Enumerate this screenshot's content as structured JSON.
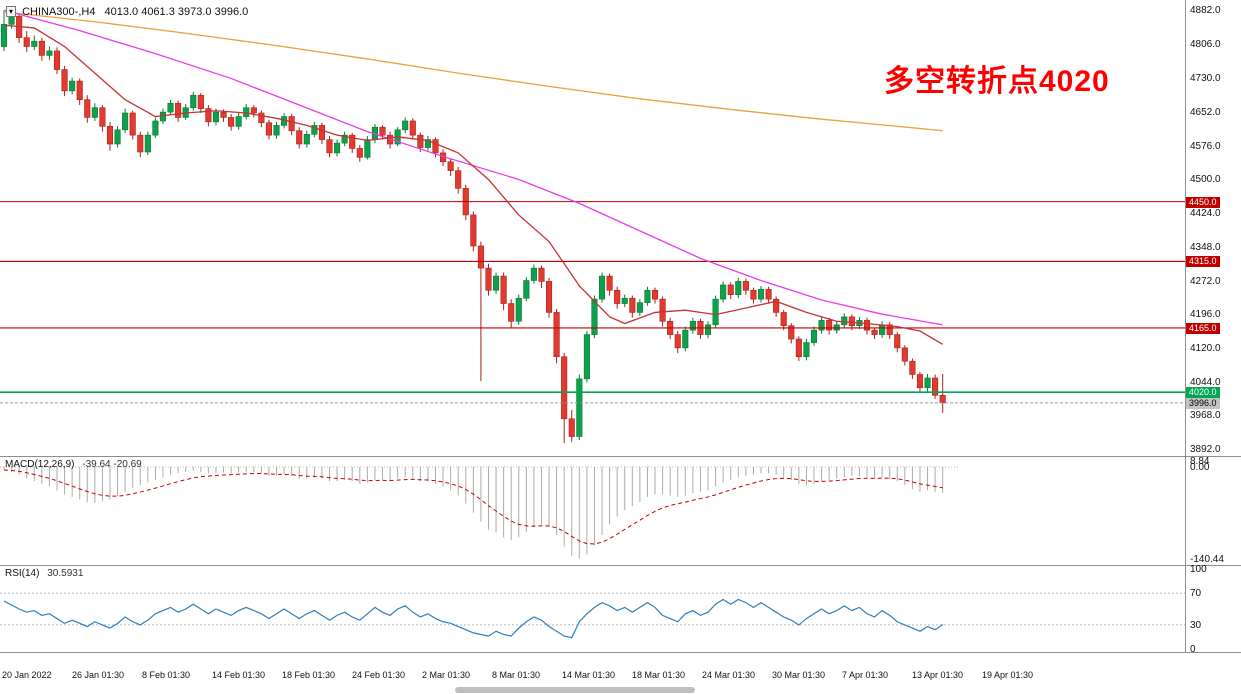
{
  "header": {
    "symbol": "CHINA300-,H4",
    "values": "4013.0 4061.3 3973.0 3996.0"
  },
  "annotation": {
    "text": "多空转折点4020",
    "color": "#ff0000"
  },
  "macd_panel": {
    "title": "MACD(12,26,9)",
    "values": "-39.64 -20.69"
  },
  "rsi_panel": {
    "title": "RSI(14)",
    "value": "30.5931"
  },
  "price_axis": {
    "labels": [
      "4882.0",
      "4806.0",
      "4730.0",
      "4652.0",
      "4576.0",
      "4500.0",
      "4424.0",
      "4348.0",
      "4272.0",
      "4196.0",
      "4120.0",
      "4044.0",
      "3968.0",
      "3892.0"
    ],
    "top": 4905,
    "bottom": 3876
  },
  "current_price": {
    "label": "3996.0",
    "price": 3996.0,
    "tag_bg": "#c4c4c4",
    "tag_fg": "#000000"
  },
  "time_axis": [
    "20 Jan 2022",
    "26 Jan 01:30",
    "8 Feb 01:30",
    "14 Feb 01:30",
    "18 Feb 01:30",
    "24 Feb 01:30",
    "2 Mar 01:30",
    "8 Mar 01:30",
    "14 Mar 01:30",
    "18 Mar 01:30",
    "24 Mar 01:30",
    "30 Mar 01:30",
    "7 Apr 01:30",
    "13 Apr 01:30",
    "19 Apr 01:30"
  ],
  "colors": {
    "bull": "#0ca14a",
    "bull_stroke": "#067a36",
    "bear": "#e23a2e",
    "bear_stroke": "#aa1f1f",
    "ma_slow": "#e8a33d",
    "ma_mid": "#e83ce8",
    "ma_fast": "#c83232",
    "hline_red": "#c00000",
    "hline_green": "#00a651",
    "macd_hist": "#aaaaaa",
    "macd_signal": "#cc0000",
    "rsi_line": "#2f7fc1",
    "grid_dotted": "#b8b8b8",
    "current_line": "#999999"
  },
  "chart_data": {
    "type": "candlestick",
    "title": "CHINA300- H4 candlestick chart with MA overlays, MACD and RSI",
    "symbol": "CHINA300-",
    "timeframe": "H4",
    "x_range": [
      "20 Jan 2022",
      "19 Apr 2022"
    ],
    "ylim": [
      3876,
      4905
    ],
    "horizontal_lines": [
      {
        "price": 4450.0,
        "label": "4450.0",
        "color": "#c00000"
      },
      {
        "price": 4315.0,
        "label": "4315.0",
        "color": "#c00000"
      },
      {
        "price": 4165.0,
        "label": "4165.0",
        "color": "#c00000"
      },
      {
        "price": 4020.0,
        "label": "4020.0",
        "color": "#00a651"
      }
    ],
    "candles": [
      [
        4800,
        4882,
        4790,
        4850
      ],
      [
        4850,
        4878,
        4840,
        4868
      ],
      [
        4868,
        4875,
        4808,
        4820
      ],
      [
        4820,
        4835,
        4788,
        4800
      ],
      [
        4800,
        4825,
        4792,
        4812
      ],
      [
        4812,
        4820,
        4768,
        4780
      ],
      [
        4780,
        4800,
        4770,
        4790
      ],
      [
        4790,
        4798,
        4738,
        4748
      ],
      [
        4748,
        4756,
        4688,
        4700
      ],
      [
        4700,
        4730,
        4692,
        4722
      ],
      [
        4722,
        4728,
        4668,
        4680
      ],
      [
        4680,
        4690,
        4628,
        4640
      ],
      [
        4640,
        4672,
        4632,
        4662
      ],
      [
        4662,
        4668,
        4608,
        4620
      ],
      [
        4620,
        4630,
        4565,
        4580
      ],
      [
        4580,
        4620,
        4572,
        4612
      ],
      [
        4612,
        4660,
        4605,
        4650
      ],
      [
        4650,
        4655,
        4590,
        4600
      ],
      [
        4600,
        4608,
        4550,
        4562
      ],
      [
        4562,
        4608,
        4555,
        4600
      ],
      [
        4600,
        4640,
        4594,
        4632
      ],
      [
        4632,
        4660,
        4625,
        4652
      ],
      [
        4652,
        4680,
        4645,
        4672
      ],
      [
        4672,
        4678,
        4630,
        4640
      ],
      [
        4640,
        4670,
        4634,
        4662
      ],
      [
        4662,
        4698,
        4655,
        4690
      ],
      [
        4690,
        4695,
        4650,
        4660
      ],
      [
        4660,
        4668,
        4620,
        4630
      ],
      [
        4630,
        4660,
        4622,
        4652
      ],
      [
        4652,
        4658,
        4630,
        4640
      ],
      [
        4640,
        4648,
        4610,
        4620
      ],
      [
        4620,
        4650,
        4612,
        4642
      ],
      [
        4642,
        4670,
        4635,
        4662
      ],
      [
        4662,
        4668,
        4640,
        4650
      ],
      [
        4650,
        4656,
        4618,
        4628
      ],
      [
        4628,
        4635,
        4590,
        4600
      ],
      [
        4600,
        4630,
        4592,
        4622
      ],
      [
        4622,
        4650,
        4615,
        4642
      ],
      [
        4642,
        4648,
        4600,
        4610
      ],
      [
        4610,
        4618,
        4570,
        4580
      ],
      [
        4580,
        4610,
        4572,
        4602
      ],
      [
        4602,
        4630,
        4595,
        4622
      ],
      [
        4622,
        4628,
        4580,
        4590
      ],
      [
        4590,
        4598,
        4550,
        4560
      ],
      [
        4560,
        4590,
        4552,
        4582
      ],
      [
        4582,
        4608,
        4575,
        4600
      ],
      [
        4600,
        4605,
        4560,
        4570
      ],
      [
        4570,
        4578,
        4540,
        4550
      ],
      [
        4550,
        4598,
        4545,
        4590
      ],
      [
        4590,
        4625,
        4582,
        4618
      ],
      [
        4618,
        4622,
        4590,
        4600
      ],
      [
        4600,
        4608,
        4570,
        4580
      ],
      [
        4580,
        4618,
        4575,
        4612
      ],
      [
        4612,
        4640,
        4605,
        4632
      ],
      [
        4632,
        4638,
        4590,
        4600
      ],
      [
        4600,
        4606,
        4562,
        4572
      ],
      [
        4572,
        4598,
        4565,
        4590
      ],
      [
        4590,
        4595,
        4550,
        4560
      ],
      [
        4560,
        4568,
        4530,
        4540
      ],
      [
        4540,
        4548,
        4508,
        4520
      ],
      [
        4520,
        4528,
        4468,
        4480
      ],
      [
        4480,
        4488,
        4408,
        4420
      ],
      [
        4420,
        4428,
        4338,
        4350
      ],
      [
        4350,
        4360,
        4045,
        4300
      ],
      [
        4300,
        4310,
        4238,
        4250
      ],
      [
        4250,
        4290,
        4242,
        4282
      ],
      [
        4282,
        4290,
        4205,
        4220
      ],
      [
        4220,
        4230,
        4165,
        4180
      ],
      [
        4180,
        4240,
        4172,
        4232
      ],
      [
        4232,
        4280,
        4225,
        4272
      ],
      [
        4272,
        4308,
        4265,
        4300
      ],
      [
        4300,
        4306,
        4255,
        4270
      ],
      [
        4270,
        4278,
        4188,
        4200
      ],
      [
        4200,
        4208,
        4085,
        4100
      ],
      [
        4100,
        4108,
        3905,
        3960
      ],
      [
        3960,
        3980,
        3908,
        3920
      ],
      [
        3920,
        4060,
        3912,
        4050
      ],
      [
        4050,
        4158,
        4042,
        4150
      ],
      [
        4150,
        4238,
        4142,
        4230
      ],
      [
        4230,
        4290,
        4222,
        4282
      ],
      [
        4282,
        4288,
        4238,
        4250
      ],
      [
        4250,
        4258,
        4208,
        4220
      ],
      [
        4220,
        4240,
        4212,
        4232
      ],
      [
        4232,
        4238,
        4188,
        4200
      ],
      [
        4200,
        4230,
        4192,
        4222
      ],
      [
        4222,
        4258,
        4215,
        4250
      ],
      [
        4250,
        4256,
        4220,
        4230
      ],
      [
        4230,
        4236,
        4168,
        4180
      ],
      [
        4180,
        4188,
        4140,
        4150
      ],
      [
        4150,
        4158,
        4108,
        4120
      ],
      [
        4120,
        4168,
        4112,
        4160
      ],
      [
        4160,
        4188,
        4152,
        4180
      ],
      [
        4180,
        4186,
        4140,
        4150
      ],
      [
        4150,
        4180,
        4142,
        4172
      ],
      [
        4172,
        4238,
        4165,
        4230
      ],
      [
        4230,
        4270,
        4222,
        4262
      ],
      [
        4262,
        4268,
        4230,
        4240
      ],
      [
        4240,
        4278,
        4232,
        4270
      ],
      [
        4270,
        4276,
        4240,
        4250
      ],
      [
        4250,
        4256,
        4220,
        4230
      ],
      [
        4230,
        4260,
        4222,
        4252
      ],
      [
        4252,
        4258,
        4220,
        4230
      ],
      [
        4230,
        4236,
        4190,
        4200
      ],
      [
        4200,
        4206,
        4160,
        4170
      ],
      [
        4170,
        4176,
        4130,
        4140
      ],
      [
        4140,
        4146,
        4090,
        4100
      ],
      [
        4100,
        4140,
        4092,
        4132
      ],
      [
        4132,
        4168,
        4125,
        4160
      ],
      [
        4160,
        4190,
        4152,
        4182
      ],
      [
        4182,
        4188,
        4150,
        4160
      ],
      [
        4160,
        4180,
        4152,
        4172
      ],
      [
        4172,
        4198,
        4165,
        4190
      ],
      [
        4190,
        4196,
        4160,
        4170
      ],
      [
        4170,
        4190,
        4162,
        4182
      ],
      [
        4182,
        4188,
        4150,
        4160
      ],
      [
        4160,
        4166,
        4140,
        4150
      ],
      [
        4150,
        4180,
        4142,
        4172
      ],
      [
        4172,
        4178,
        4140,
        4150
      ],
      [
        4150,
        4156,
        4110,
        4120
      ],
      [
        4120,
        4126,
        4080,
        4090
      ],
      [
        4090,
        4096,
        4050,
        4060
      ],
      [
        4060,
        4066,
        4020,
        4030
      ],
      [
        4030,
        4061,
        4022,
        4052
      ],
      [
        4052,
        4060,
        4005,
        4013
      ],
      [
        4013,
        4061,
        3973,
        3996
      ]
    ],
    "moving_averages": [
      {
        "name": "ma-slow-orange",
        "color": "#e8a33d",
        "points": [
          [
            0,
            4878
          ],
          [
            12,
            4856
          ],
          [
            24,
            4830
          ],
          [
            36,
            4802
          ],
          [
            48,
            4772
          ],
          [
            60,
            4740
          ],
          [
            72,
            4710
          ],
          [
            84,
            4682
          ],
          [
            96,
            4658
          ],
          [
            108,
            4636
          ],
          [
            118,
            4620
          ],
          [
            124,
            4610
          ]
        ]
      },
      {
        "name": "ma-mid-magenta",
        "color": "#e83ce8",
        "points": [
          [
            0,
            4882
          ],
          [
            10,
            4836
          ],
          [
            20,
            4784
          ],
          [
            30,
            4728
          ],
          [
            39,
            4668
          ],
          [
            48,
            4608
          ],
          [
            58,
            4552
          ],
          [
            68,
            4500
          ],
          [
            76,
            4446
          ],
          [
            84,
            4384
          ],
          [
            92,
            4322
          ],
          [
            100,
            4272
          ],
          [
            108,
            4228
          ],
          [
            116,
            4196
          ],
          [
            124,
            4172
          ]
        ]
      },
      {
        "name": "ma-fast-red",
        "color": "#c83232",
        "points": [
          [
            0,
            4848
          ],
          [
            4,
            4842
          ],
          [
            8,
            4800
          ],
          [
            12,
            4740
          ],
          [
            16,
            4680
          ],
          [
            20,
            4642
          ],
          [
            24,
            4650
          ],
          [
            28,
            4655
          ],
          [
            32,
            4650
          ],
          [
            36,
            4638
          ],
          [
            40,
            4622
          ],
          [
            44,
            4600
          ],
          [
            48,
            4588
          ],
          [
            52,
            4596
          ],
          [
            56,
            4588
          ],
          [
            60,
            4560
          ],
          [
            64,
            4500
          ],
          [
            68,
            4420
          ],
          [
            72,
            4360
          ],
          [
            76,
            4260
          ],
          [
            80,
            4190
          ],
          [
            82,
            4175
          ],
          [
            86,
            4200
          ],
          [
            90,
            4205
          ],
          [
            94,
            4195
          ],
          [
            98,
            4210
          ],
          [
            102,
            4225
          ],
          [
            106,
            4200
          ],
          [
            110,
            4180
          ],
          [
            114,
            4175
          ],
          [
            118,
            4168
          ],
          [
            121,
            4158
          ],
          [
            124,
            4128
          ]
        ]
      }
    ],
    "macd": {
      "type": "macd_histogram_with_signal",
      "params": "12,26,9",
      "current_main": -39.64,
      "current_signal": -20.69,
      "ylim": [
        -150,
        15
      ],
      "axis_labels": [
        {
          "text": "8.84",
          "value": 8.84
        },
        {
          "text": "0.00",
          "value": 0
        },
        {
          "text": "-140.44",
          "value": -140.44
        }
      ],
      "main": [
        -5,
        -8,
        -12,
        -18,
        -22,
        -26,
        -30,
        -36,
        -42,
        -46,
        -50,
        -54,
        -55,
        -53,
        -50,
        -45,
        -38,
        -32,
        -28,
        -24,
        -20,
        -16,
        -12,
        -10,
        -8,
        -6,
        -8,
        -10,
        -10,
        -9,
        -10,
        -9,
        -8,
        -8,
        -10,
        -14,
        -14,
        -12,
        -14,
        -18,
        -18,
        -16,
        -18,
        -22,
        -22,
        -20,
        -22,
        -26,
        -24,
        -20,
        -20,
        -22,
        -18,
        -16,
        -18,
        -22,
        -22,
        -26,
        -30,
        -36,
        -44,
        -56,
        -70,
        -84,
        -96,
        -100,
        -108,
        -112,
        -108,
        -100,
        -92,
        -88,
        -92,
        -104,
        -122,
        -136,
        -140.44,
        -134,
        -120,
        -104,
        -88,
        -76,
        -66,
        -60,
        -54,
        -46,
        -42,
        -42,
        -44,
        -46,
        -44,
        -40,
        -38,
        -36,
        -30,
        -24,
        -20,
        -16,
        -14,
        -12,
        -10,
        -10,
        -12,
        -16,
        -20,
        -26,
        -28,
        -26,
        -22,
        -20,
        -18,
        -16,
        -14,
        -14,
        -16,
        -18,
        -16,
        -18,
        -22,
        -28,
        -34,
        -38,
        -36,
        -38,
        -39.64
      ],
      "signal_period": 9
    },
    "rsi": {
      "type": "line",
      "period": 14,
      "current": 30.5931,
      "ylim": [
        0,
        100
      ],
      "levels": [
        70,
        30
      ],
      "axis_labels": [
        {
          "text": "100",
          "value": 100
        },
        {
          "text": "70",
          "value": 70
        },
        {
          "text": "30",
          "value": 30
        },
        {
          "text": "0",
          "value": 0
        }
      ],
      "values": [
        60,
        55,
        50,
        46,
        48,
        42,
        44,
        38,
        32,
        36,
        32,
        28,
        34,
        30,
        26,
        32,
        40,
        34,
        30,
        36,
        44,
        48,
        52,
        46,
        50,
        56,
        50,
        44,
        50,
        46,
        42,
        48,
        52,
        48,
        44,
        38,
        44,
        50,
        44,
        38,
        44,
        48,
        42,
        36,
        42,
        46,
        40,
        36,
        44,
        52,
        46,
        42,
        50,
        54,
        46,
        40,
        44,
        38,
        34,
        32,
        28,
        24,
        20,
        18,
        16,
        22,
        18,
        16,
        26,
        34,
        40,
        36,
        28,
        22,
        16,
        14,
        34,
        44,
        52,
        58,
        54,
        48,
        52,
        46,
        52,
        58,
        52,
        42,
        38,
        34,
        44,
        48,
        42,
        46,
        56,
        62,
        56,
        62,
        58,
        52,
        58,
        52,
        46,
        40,
        36,
        30,
        38,
        44,
        50,
        44,
        48,
        54,
        48,
        52,
        44,
        40,
        48,
        42,
        34,
        30,
        26,
        22,
        28,
        24,
        30.59
      ]
    }
  }
}
